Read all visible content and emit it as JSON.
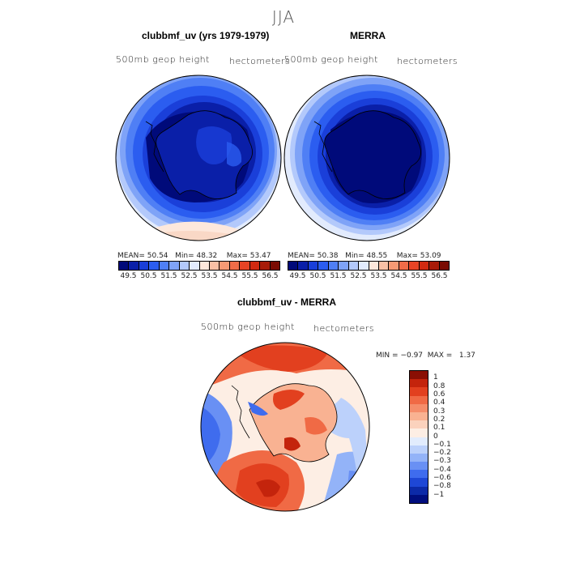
{
  "title": "JJA",
  "panels": {
    "model": {
      "title": "clubbmf_uv (yrs 1979-1979)",
      "variable": "500mb  geop  height",
      "units": "hectometers",
      "stats": {
        "mean_label": "MEAN=",
        "mean": "50.54",
        "min_label": "Min=",
        "min": "48.32",
        "max_label": "Max=",
        "max": "53.47"
      }
    },
    "obs": {
      "title": "MERRA",
      "variable": "500mb  geop  height",
      "units": "hectometers",
      "stats": {
        "mean_label": "MEAN=",
        "mean": "50.38",
        "min_label": "Min=",
        "min": "48.55",
        "max_label": "Max=",
        "max": "53.09"
      }
    },
    "diff": {
      "title": "clubbmf_uv - MERRA",
      "variable": "500mb  geop  height",
      "units": "hectometers",
      "stats": {
        "min_label": "MIN =",
        "min": "−0.97",
        "max_label": "MAX =",
        "max": "1.37"
      }
    }
  },
  "colorbar_main": {
    "ticks": [
      "49.5",
      "50.5",
      "51.5",
      "52.5",
      "53.5",
      "54.5",
      "55.5",
      "56.5"
    ],
    "colors": [
      "#000a7a",
      "#0a1fa8",
      "#1a3fd9",
      "#2b5df0",
      "#4f7ff5",
      "#7fa3f7",
      "#b3c9fb",
      "#e2ebfd",
      "#fde8dc",
      "#f9c0a5",
      "#f69a74",
      "#f06c48",
      "#e74425",
      "#d12a11",
      "#a81b09",
      "#7a0b03"
    ]
  },
  "colorbar_diff": {
    "ticks": [
      "1",
      "0.8",
      "0.6",
      "0.4",
      "0.3",
      "0.2",
      "0.1",
      "0",
      "−0.1",
      "−0.2",
      "−0.3",
      "−0.4",
      "−0.6",
      "−0.8",
      "−1"
    ],
    "colors": [
      "#8a0f04",
      "#c4240c",
      "#e2401f",
      "#f06a45",
      "#f58d6a",
      "#f9b292",
      "#fbd2bd",
      "#fdeee4",
      "#e2ecfd",
      "#bcd1fb",
      "#93b3f8",
      "#6990f4",
      "#3f6cee",
      "#1e47d6",
      "#0c2aa8",
      "#000e7e"
    ]
  }
}
